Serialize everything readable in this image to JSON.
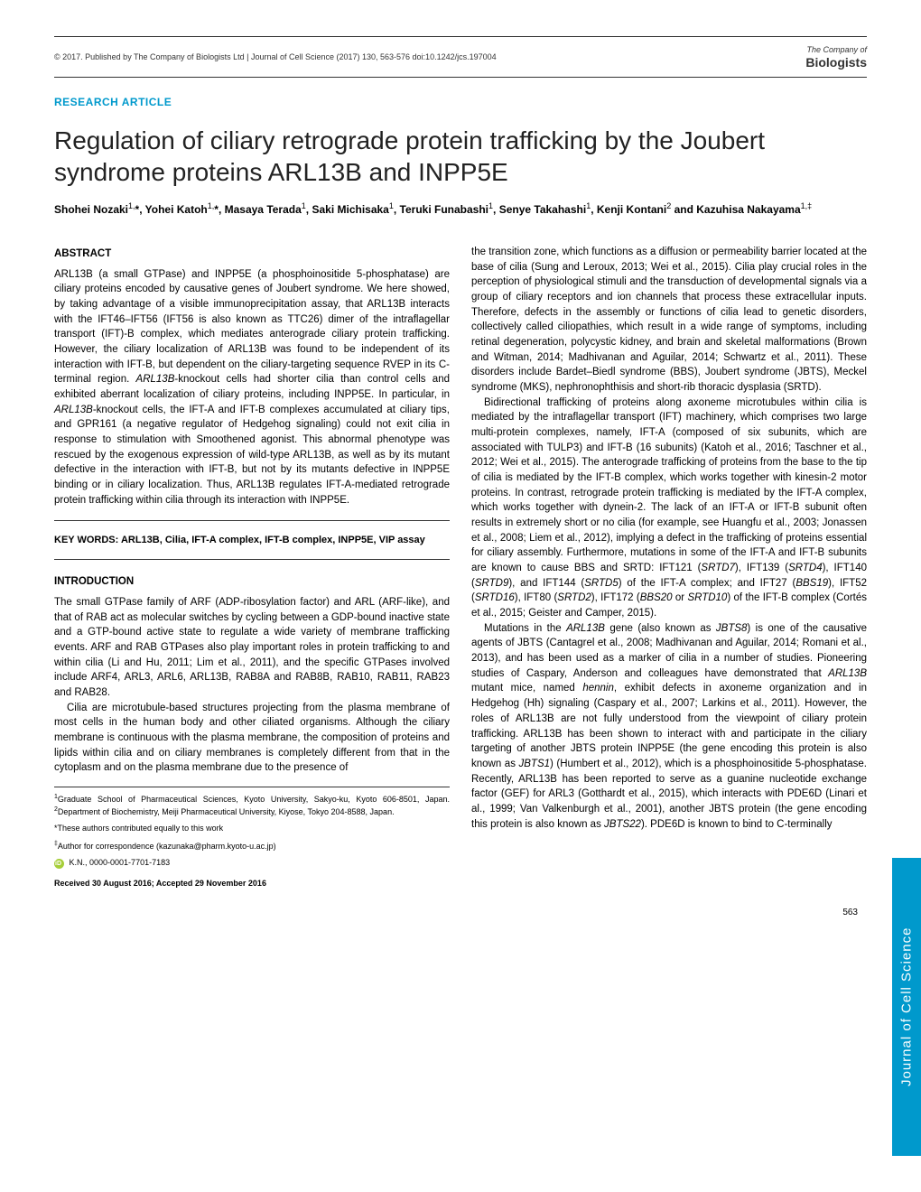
{
  "header": {
    "copyright": "© 2017. Published by The Company of Biologists Ltd",
    "journal_info": "Journal of Cell Science (2017) 130, 563-576 doi:10.1242/jcs.197004",
    "logo_company": "The Company of",
    "logo_biologists": "Biologists"
  },
  "article_type": "RESEARCH ARTICLE",
  "title": "Regulation of ciliary retrograde protein trafficking by the Joubert syndrome proteins ARL13B and INPP5E",
  "authors": "Shohei Nozaki<sup>1,</sup>*, Yohei Katoh<sup>1,</sup>*, Masaya Terada<sup>1</sup>, Saki Michisaka<sup>1</sup>, Teruki Funabashi<sup>1</sup>, Senye Takahashi<sup>1</sup>, Kenji Kontani<sup>2</sup> and Kazuhisa Nakayama<sup>1,‡</sup>",
  "abstract_heading": "ABSTRACT",
  "abstract_text": "ARL13B (a small GTPase) and INPP5E (a phosphoinositide 5-phosphatase) are ciliary proteins encoded by causative genes of Joubert syndrome. We here showed, by taking advantage of a visible immunoprecipitation assay, that ARL13B interacts with the IFT46–IFT56 (IFT56 is also known as TTC26) dimer of the intraflagellar transport (IFT)-B complex, which mediates anterograde ciliary protein trafficking. However, the ciliary localization of ARL13B was found to be independent of its interaction with IFT-B, but dependent on the ciliary-targeting sequence RVEP in its C-terminal region. <span class=\"italic\">ARL13B</span>-knockout cells had shorter cilia than control cells and exhibited aberrant localization of ciliary proteins, including INPP5E. In particular, in <span class=\"italic\">ARL13B</span>-knockout cells, the IFT-A and IFT-B complexes accumulated at ciliary tips, and GPR161 (a negative regulator of Hedgehog signaling) could not exit cilia in response to stimulation with Smoothened agonist. This abnormal phenotype was rescued by the exogenous expression of wild-type ARL13B, as well as by its mutant defective in the interaction with IFT-B, but not by its mutants defective in INPP5E binding or in ciliary localization. Thus, ARL13B regulates IFT-A-mediated retrograde protein trafficking within cilia through its interaction with INPP5E.",
  "keywords_label": "KEY WORDS: ARL13B, Cilia, IFT-A complex, IFT-B complex, INPP5E, VIP assay",
  "intro_heading": "INTRODUCTION",
  "intro_p1": "The small GTPase family of ARF (ADP-ribosylation factor) and ARL (ARF-like), and that of RAB act as molecular switches by cycling between a GDP-bound inactive state and a GTP-bound active state to regulate a wide variety of membrane trafficking events. ARF and RAB GTPases also play important roles in protein trafficking to and within cilia (Li and Hu, 2011; Lim et al., 2011), and the specific GTPases involved include ARF4, ARL3, ARL6, ARL13B, RAB8A and RAB8B, RAB10, RAB11, RAB23 and RAB28.",
  "intro_p2": "Cilia are microtubule-based structures projecting from the plasma membrane of most cells in the human body and other ciliated organisms. Although the ciliary membrane is continuous with the plasma membrane, the composition of proteins and lipids within cilia and on ciliary membranes is completely different from that in the cytoplasm and on the plasma membrane due to the presence of",
  "affiliations": {
    "aff1": "<sup>1</sup>Graduate School of Pharmaceutical Sciences, Kyoto University, Sakyo-ku, Kyoto 606-8501, Japan. <sup>2</sup>Department of Biochemistry, Meiji Pharmaceutical University, Kiyose, Tokyo 204-8588, Japan.",
    "equal": "*These authors contributed equally to this work",
    "correspondence": "<sup>‡</sup>Author for correspondence (kazunaka@pharm.kyoto-u.ac.jp)",
    "orcid": "K.N., 0000-0001-7701-7183",
    "received": "Received 30 August 2016; Accepted 29 November 2016"
  },
  "right_p1": "the transition zone, which functions as a diffusion or permeability barrier located at the base of cilia (Sung and Leroux, 2013; Wei et al., 2015). Cilia play crucial roles in the perception of physiological stimuli and the transduction of developmental signals via a group of ciliary receptors and ion channels that process these extracellular inputs. Therefore, defects in the assembly or functions of cilia lead to genetic disorders, collectively called ciliopathies, which result in a wide range of symptoms, including retinal degeneration, polycystic kidney, and brain and skeletal malformations (Brown and Witman, 2014; Madhivanan and Aguilar, 2014; Schwartz et al., 2011). These disorders include Bardet–Biedl syndrome (BBS), Joubert syndrome (JBTS), Meckel syndrome (MKS), nephronophthisis and short-rib thoracic dysplasia (SRTD).",
  "right_p2": "Bidirectional trafficking of proteins along axoneme microtubules within cilia is mediated by the intraflagellar transport (IFT) machinery, which comprises two large multi-protein complexes, namely, IFT-A (composed of six subunits, which are associated with TULP3) and IFT-B (16 subunits) (Katoh et al., 2016; Taschner et al., 2012; Wei et al., 2015). The anterograde trafficking of proteins from the base to the tip of cilia is mediated by the IFT-B complex, which works together with kinesin-2 motor proteins. In contrast, retrograde protein trafficking is mediated by the IFT-A complex, which works together with dynein-2. The lack of an IFT-A or IFT-B subunit often results in extremely short or no cilia (for example, see Huangfu et al., 2003; Jonassen et al., 2008; Liem et al., 2012), implying a defect in the trafficking of proteins essential for ciliary assembly. Furthermore, mutations in some of the IFT-A and IFT-B subunits are known to cause BBS and SRTD: IFT121 (<span class=\"italic\">SRTD7</span>), IFT139 (<span class=\"italic\">SRTD4</span>), IFT140 (<span class=\"italic\">SRTD9</span>), and IFT144 (<span class=\"italic\">SRTD5</span>) of the IFT-A complex; and IFT27 (<span class=\"italic\">BBS19</span>), IFT52 (<span class=\"italic\">SRTD16</span>), IFT80 (<span class=\"italic\">SRTD2</span>), IFT172 (<span class=\"italic\">BBS20</span> or <span class=\"italic\">SRTD10</span>) of the IFT-B complex (Cortés et al., 2015; Geister and Camper, 2015).",
  "right_p3": "Mutations in the <span class=\"italic\">ARL13B</span> gene (also known as <span class=\"italic\">JBTS8</span>) is one of the causative agents of JBTS (Cantagrel et al., 2008; Madhivanan and Aguilar, 2014; Romani et al., 2013), and has been used as a marker of cilia in a number of studies. Pioneering studies of Caspary, Anderson and colleagues have demonstrated that <span class=\"italic\">ARL13B</span> mutant mice, named <span class=\"italic\">hennin</span>, exhibit defects in axoneme organization and in Hedgehog (Hh) signaling (Caspary et al., 2007; Larkins et al., 2011). However, the roles of ARL13B are not fully understood from the viewpoint of ciliary protein trafficking. ARL13B has been shown to interact with and participate in the ciliary targeting of another JBTS protein INPP5E (the gene encoding this protein is also known as <span class=\"italic\">JBTS1</span>) (Humbert et al., 2012), which is a phosphoinositide 5-phosphatase. Recently, ARL13B has been reported to serve as a guanine nucleotide exchange factor (GEF) for ARL3 (Gotthardt et al., 2015), which interacts with PDE6D (Linari et al., 1999; Van Valkenburgh et al., 2001), another JBTS protein (the gene encoding this protein is also known as <span class=\"italic\">JBTS22</span>). PDE6D is known to bind to C-terminally",
  "side_tab": "Journal of Cell Science",
  "page_number": "563"
}
